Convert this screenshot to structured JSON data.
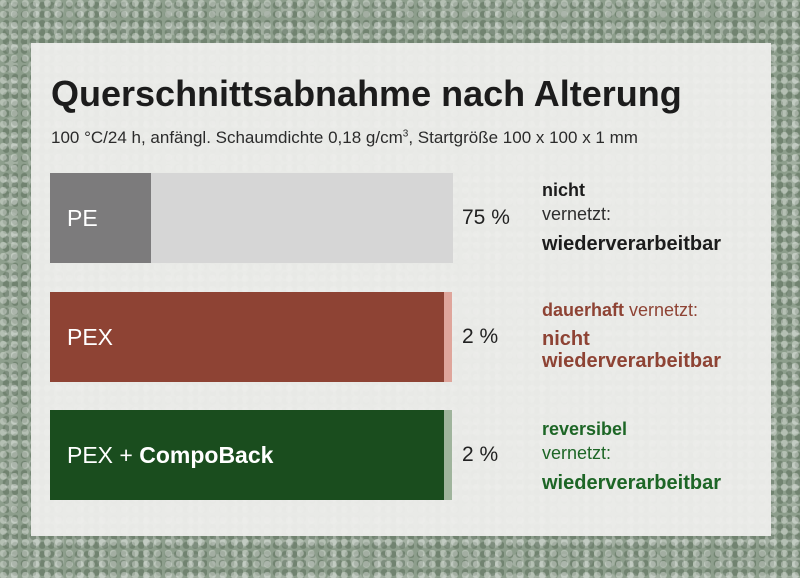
{
  "chart_data": {
    "type": "bar",
    "title": "Querschnittsabnahme nach Alterung",
    "subtitle": {
      "before_sup": "100 °C/24 h, anfängl. Schaumdichte 0,18 g/cm",
      "sup": "3",
      "after_sup": ", Startgröße 100 x 100 x 1 mm"
    },
    "orientation": "horizontal",
    "xlim": [
      0,
      100
    ],
    "categories": [
      "PE",
      "PEX",
      "PEX + CompoBack"
    ],
    "values": [
      25,
      98,
      98
    ],
    "remaining_values": [
      75,
      2,
      2
    ],
    "value_labels": [
      "75 %",
      "2 %",
      "2 %"
    ],
    "bars": [
      {
        "label_plain": "PE",
        "label_bold": "",
        "fill_color": "#7c7b7c",
        "remain_color": "#d6d6d6",
        "desc": {
          "line1_bold": "nicht",
          "line1_rest": "",
          "line2": "vernetzt:",
          "line3": "wiederverarbeitbar",
          "color_strong": "#1c1c1c",
          "color_normal": "#2e2e2e"
        }
      },
      {
        "label_plain": "PEX",
        "label_bold": "",
        "fill_color": "#8e4334",
        "remain_color": "#dfa59b",
        "desc": {
          "line1_bold": "dauerhaft",
          "line1_rest": " vernetzt:",
          "line2": "",
          "line3": "nicht wiederverarbeitbar",
          "color_strong": "#8e4334",
          "color_normal": "#8e4334"
        }
      },
      {
        "label_plain": "PEX + ",
        "label_bold": "CompoBack",
        "fill_color": "#1a4d1e",
        "remain_color": "#9fb49c",
        "desc": {
          "line1_bold": "reversibel",
          "line1_rest": "",
          "line2": "vernetzt:",
          "line3": "wiederverarbeitbar",
          "color_strong": "#1d6626",
          "color_normal": "#1d6626"
        }
      }
    ]
  }
}
